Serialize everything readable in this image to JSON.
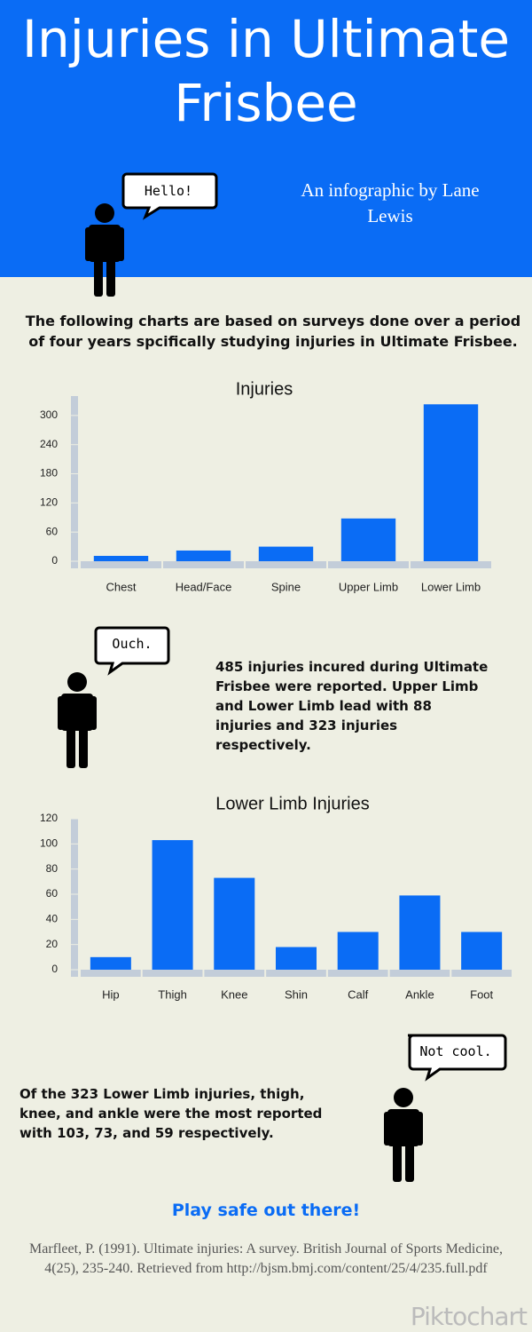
{
  "header": {
    "title": "Injuries in Ultimate Frisbee",
    "byline": "An infographic by Lane Lewis",
    "bubble": "Hello!"
  },
  "intro": "The following charts are based on surveys done over a period of four years spcifically studying injuries in Ultimate Frisbee.",
  "chart_data": [
    {
      "type": "bar",
      "title": "Injuries",
      "categories": [
        "Chest",
        "Head/Face",
        "Spine",
        "Upper Limb",
        "Lower Limb"
      ],
      "values": [
        11,
        22,
        30,
        88,
        323
      ],
      "color": "#0a6cf5",
      "ylim": [
        0,
        340
      ],
      "yticks": [
        0,
        60,
        120,
        180,
        240,
        300
      ],
      "grid": false
    },
    {
      "type": "bar",
      "title": "Lower Limb Injuries",
      "categories": [
        "Hip",
        "Thigh",
        "Knee",
        "Shin",
        "Calf",
        "Ankle",
        "Foot"
      ],
      "values": [
        10,
        103,
        73,
        18,
        30,
        59,
        30
      ],
      "color": "#0a6cf5",
      "ylim": [
        0,
        120
      ],
      "yticks": [
        0,
        20,
        40,
        60,
        80,
        100,
        120
      ],
      "grid": false
    }
  ],
  "section_1": {
    "bubble": "Ouch.",
    "text": "485 injuries incured during Ultimate Frisbee were reported. Upper Limb and Lower Limb lead with 88 injuries and 323 injuries respectively."
  },
  "section_2": {
    "bubble": "Not cool.",
    "text": "Of the 323 Lower Limb injuries, thigh, knee, and ankle were the most reported with 103, 73, and 59 respectively."
  },
  "footer": {
    "slogan": "Play safe out there!",
    "citation": "Marfleet, P. (1991). Ultimate injuries: A survey. British Journal of Sports Medicine, 4(25), 235-240. Retrieved from http://bjsm.bmj.com/content/25/4/235.full.pdf",
    "watermark": "Piktochart"
  }
}
